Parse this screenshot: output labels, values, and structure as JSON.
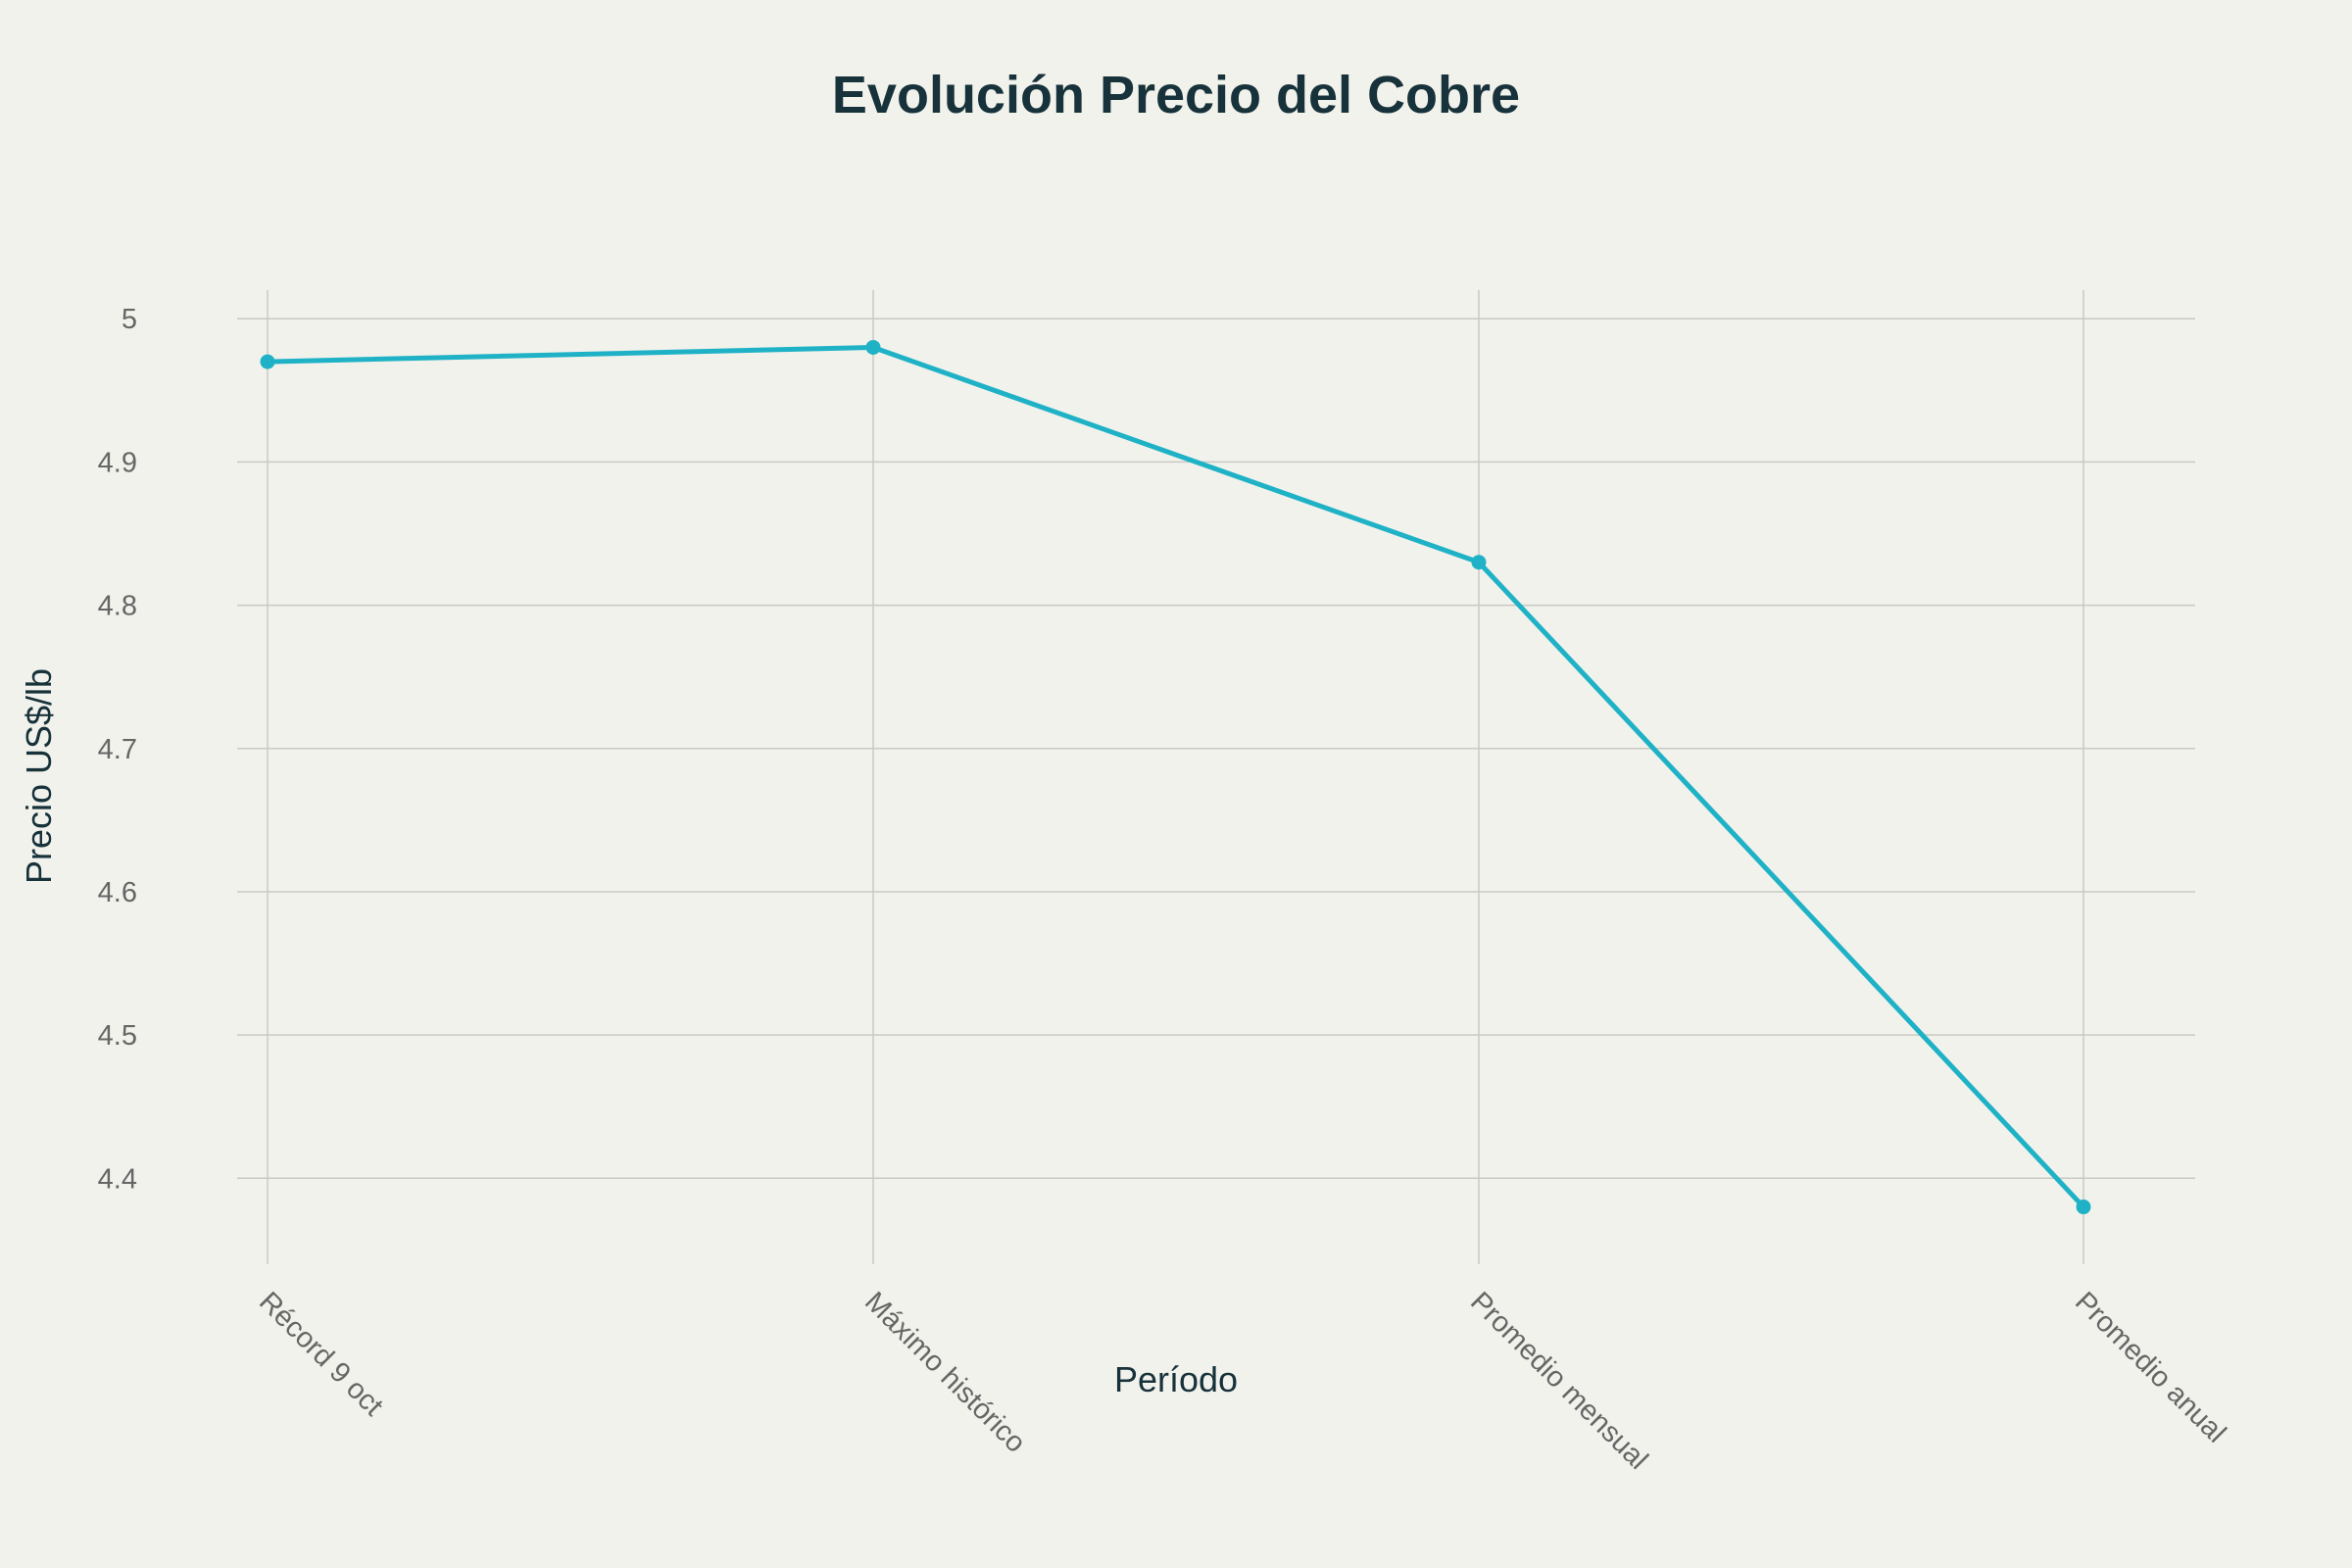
{
  "chart_data": {
    "type": "line",
    "title": "Evolución Precio del Cobre",
    "xlabel": "Período",
    "ylabel": "Precio US$/lb",
    "categories": [
      "Récord 9 oct",
      "Máximo histórico",
      "Promedio mensual",
      "Promedio anual"
    ],
    "series": [
      {
        "values": [
          4.97,
          4.98,
          4.83,
          4.38
        ],
        "color": "#1fb2c6"
      }
    ],
    "ylim": [
      4.34,
      5.02
    ],
    "yticks": [
      4.4,
      4.5,
      4.6,
      4.7,
      4.8,
      4.9,
      5
    ],
    "ytick_labels": [
      "4.4",
      "4.5",
      "4.6",
      "4.7",
      "4.8",
      "4.9",
      "5"
    ],
    "grid": true,
    "legend": "none"
  }
}
